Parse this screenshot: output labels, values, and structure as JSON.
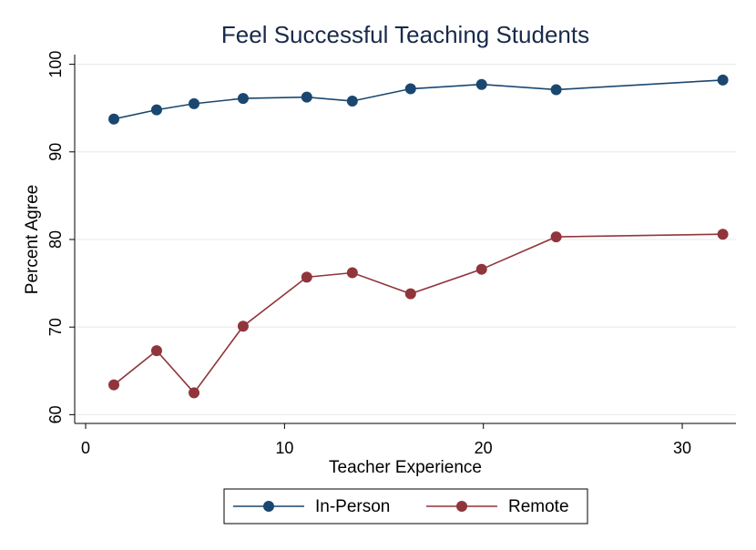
{
  "chart_data": {
    "type": "line",
    "title": "Feel Successful Teaching Students",
    "x_label": "Teacher Experience",
    "y_label": "Percent Agree",
    "x": [
      1.42,
      3.57,
      5.45,
      7.92,
      11.12,
      13.41,
      16.34,
      19.91,
      23.66,
      32.04
    ],
    "series": [
      {
        "name": "In-Person",
        "color": "#1a476f",
        "values": [
          93.75,
          94.8,
          95.5,
          96.1,
          96.25,
          95.8,
          97.2,
          97.7,
          97.1,
          98.2
        ]
      },
      {
        "name": "Remote",
        "color": "#90353b",
        "values": [
          63.4,
          67.3,
          62.5,
          70.1,
          75.7,
          76.2,
          73.8,
          76.6,
          80.3,
          80.6
        ]
      }
    ],
    "xlim": [
      -0.55,
      32.7
    ],
    "xticks": [
      0,
      10,
      20,
      30
    ],
    "ylim": [
      59,
      101.1
    ],
    "yticks": [
      60,
      70,
      80,
      90,
      100
    ],
    "grid": true,
    "legend": "bottom"
  }
}
